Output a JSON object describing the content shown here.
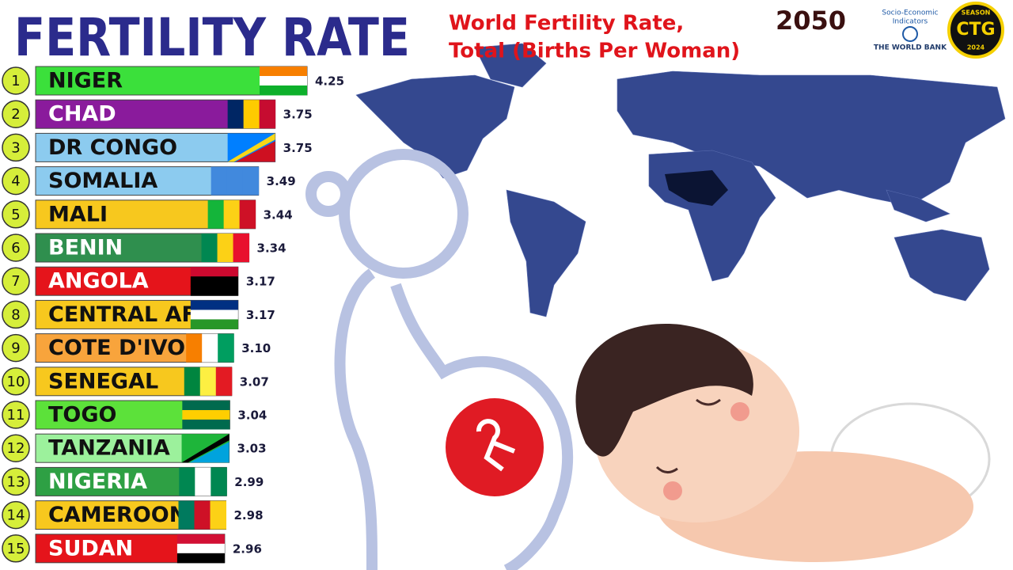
{
  "chart_data": {
    "type": "bar",
    "orientation": "horizontal",
    "title": "FERTILITY RATE",
    "subtitle": [
      "World Fertility Rate,",
      "Total (Births Per Woman)"
    ],
    "year": "2050",
    "source": [
      "Socio-Economic",
      "Indicators",
      "THE WORLD BANK"
    ],
    "badge": [
      "SEASON",
      "CTG",
      "2024"
    ],
    "ranks": [
      1,
      2,
      3,
      4,
      5,
      6,
      7,
      8,
      9,
      10,
      11,
      12,
      13,
      14,
      15
    ],
    "categories": [
      "NIGER",
      "CHAD",
      "DR CONGO",
      "SOMALIA",
      "MALI",
      "BENIN",
      "ANGOLA",
      "CENTRAL AFRICAN REPUBLIC",
      "COTE D'IVOIRE",
      "SENEGAL",
      "TOGO",
      "TANZANIA",
      "NIGERIA",
      "CAMEROON",
      "SUDAN"
    ],
    "values": [
      4.25,
      3.75,
      3.75,
      3.49,
      3.44,
      3.34,
      3.17,
      3.17,
      3.1,
      3.07,
      3.04,
      3.03,
      2.99,
      2.98,
      2.96
    ],
    "value_labels": [
      "4.25",
      "3.75",
      "3.75",
      "3.49",
      "3.44",
      "3.34",
      "3.17",
      "3.17",
      "3.10",
      "3.07",
      "3.04",
      "3.03",
      "2.99",
      "2.98",
      "2.96"
    ],
    "colors": [
      "#3be03b",
      "#8a1b9c",
      "#8ccbef",
      "#8ccbef",
      "#f7c81e",
      "#2f8f4e",
      "#e5141b",
      "#f7c81e",
      "#f8a43c",
      "#f7c81e",
      "#5ce13a",
      "#9cf19c",
      "#2ea044",
      "#f7c81e",
      "#e5141b"
    ]
  }
}
